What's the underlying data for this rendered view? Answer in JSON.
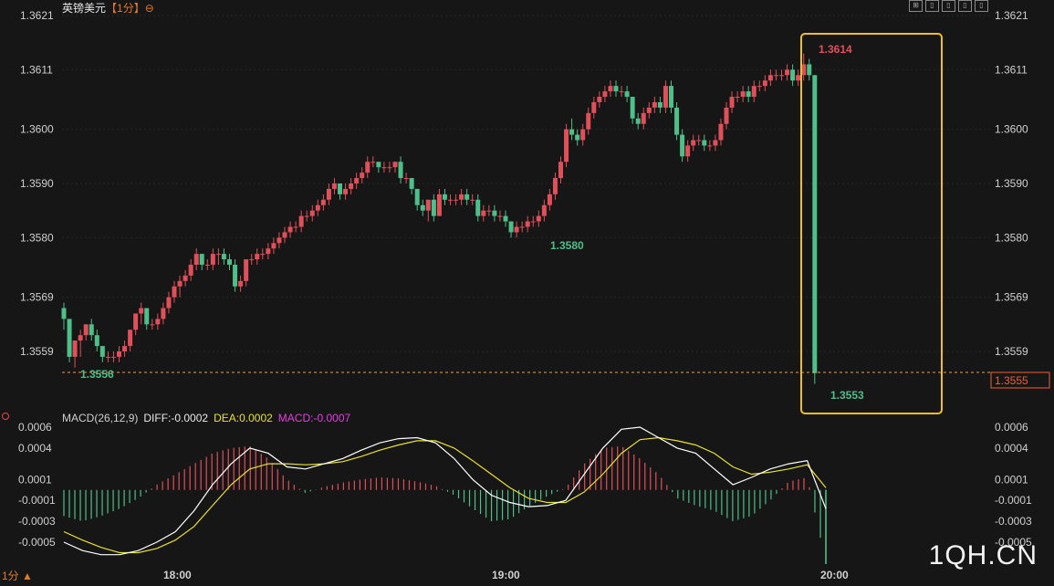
{
  "header": {
    "symbol": "英镑美元",
    "timeframe_tag": "【1分】",
    "minus_icon": "circle-minus-icon"
  },
  "toolbar_icons": [
    "grid-icon",
    "layout-icon",
    "layout-icon",
    "layout-icon",
    "layout-icon"
  ],
  "timeframe_button": "1分 ▲",
  "watermark": "1QH.CN",
  "macd_header": {
    "name": "MACD(26,12,9)",
    "diff": "DIFF:-0.0002",
    "dea": "DEA:0.0002",
    "macd": "MACD:-0.0007"
  },
  "colors": {
    "up": "#e0505a",
    "down": "#4fbf8a",
    "highlight": "#f0c020",
    "dea": "#e8e030",
    "diff": "#ffffff",
    "macd": "#e040e0",
    "price_line": "#f0a040"
  },
  "chart_data": [
    {
      "type": "candlestick",
      "y_ticks": [
        "1.3621",
        "1.3611",
        "1.3600",
        "1.3590",
        "1.3580",
        "1.3569",
        "1.3559"
      ],
      "ylim": [
        1.355,
        1.3623
      ],
      "x_ticks": [
        "18:00",
        "19:00",
        "20:00"
      ],
      "current_price": "1.3555",
      "annotations": {
        "high": "1.3614",
        "low_mid": "1.3580",
        "low_start": "1.3556",
        "low_end": "1.3553"
      },
      "ohlc": [
        [
          1.3567,
          1.3568,
          1.3563,
          1.3565
        ],
        [
          1.3565,
          1.3565,
          1.3557,
          1.3558
        ],
        [
          1.3558,
          1.3561,
          1.3556,
          1.3561
        ],
        [
          1.3561,
          1.3563,
          1.3558,
          1.3562
        ],
        [
          1.3562,
          1.3564,
          1.3561,
          1.3564
        ],
        [
          1.3564,
          1.3565,
          1.3561,
          1.3562
        ],
        [
          1.3562,
          1.3563,
          1.3559,
          1.356
        ],
        [
          1.356,
          1.356,
          1.3557,
          1.3558
        ],
        [
          1.3558,
          1.3559,
          1.3557,
          1.3558
        ],
        [
          1.3558,
          1.3559,
          1.3557,
          1.3558
        ],
        [
          1.3558,
          1.356,
          1.3557,
          1.3559
        ],
        [
          1.3559,
          1.3561,
          1.3558,
          1.356
        ],
        [
          1.356,
          1.3563,
          1.3559,
          1.3563
        ],
        [
          1.3563,
          1.3566,
          1.3562,
          1.3566
        ],
        [
          1.3566,
          1.3568,
          1.3564,
          1.3567
        ],
        [
          1.3567,
          1.3567,
          1.3563,
          1.3564
        ],
        [
          1.3564,
          1.3565,
          1.3563,
          1.3564
        ],
        [
          1.3564,
          1.3566,
          1.3563,
          1.3565
        ],
        [
          1.3565,
          1.3568,
          1.3564,
          1.3567
        ],
        [
          1.3567,
          1.357,
          1.3566,
          1.3569
        ],
        [
          1.3569,
          1.3572,
          1.3568,
          1.3571
        ],
        [
          1.3571,
          1.3573,
          1.3569,
          1.3572
        ],
        [
          1.3572,
          1.3574,
          1.3571,
          1.3573
        ],
        [
          1.3573,
          1.3576,
          1.3572,
          1.3575
        ],
        [
          1.3575,
          1.3578,
          1.3574,
          1.3577
        ],
        [
          1.3577,
          1.3577,
          1.3574,
          1.3575
        ],
        [
          1.3575,
          1.3576,
          1.3574,
          1.3575
        ],
        [
          1.3575,
          1.3578,
          1.3574,
          1.3577
        ],
        [
          1.3577,
          1.3578,
          1.3575,
          1.3577
        ],
        [
          1.3577,
          1.3578,
          1.3575,
          1.3576
        ],
        [
          1.3576,
          1.3577,
          1.3574,
          1.3575
        ],
        [
          1.3575,
          1.3576,
          1.357,
          1.3571
        ],
        [
          1.3571,
          1.3573,
          1.357,
          1.3572
        ],
        [
          1.3572,
          1.3576,
          1.3571,
          1.3576
        ],
        [
          1.3576,
          1.3577,
          1.3575,
          1.3576
        ],
        [
          1.3576,
          1.3578,
          1.3575,
          1.3577
        ],
        [
          1.3577,
          1.3578,
          1.3576,
          1.3577
        ],
        [
          1.3577,
          1.3579,
          1.3576,
          1.3578
        ],
        [
          1.3578,
          1.358,
          1.3577,
          1.3579
        ],
        [
          1.3579,
          1.3581,
          1.3578,
          1.358
        ],
        [
          1.358,
          1.3582,
          1.3579,
          1.3581
        ],
        [
          1.3581,
          1.3583,
          1.358,
          1.3582
        ],
        [
          1.3582,
          1.3583,
          1.3581,
          1.3582
        ],
        [
          1.3582,
          1.3585,
          1.3581,
          1.3584
        ],
        [
          1.3584,
          1.3585,
          1.3583,
          1.3584
        ],
        [
          1.3584,
          1.3586,
          1.3583,
          1.3585
        ],
        [
          1.3585,
          1.3587,
          1.3584,
          1.3586
        ],
        [
          1.3586,
          1.3588,
          1.3585,
          1.3587
        ],
        [
          1.3587,
          1.359,
          1.3586,
          1.3589
        ],
        [
          1.3589,
          1.3591,
          1.3588,
          1.359
        ],
        [
          1.359,
          1.359,
          1.3587,
          1.3588
        ],
        [
          1.3588,
          1.359,
          1.3587,
          1.3589
        ],
        [
          1.3589,
          1.3591,
          1.3588,
          1.359
        ],
        [
          1.359,
          1.3592,
          1.3589,
          1.3591
        ],
        [
          1.3591,
          1.3593,
          1.359,
          1.3592
        ],
        [
          1.3592,
          1.3595,
          1.3591,
          1.3594
        ],
        [
          1.3594,
          1.3595,
          1.3593,
          1.3594
        ],
        [
          1.3594,
          1.3594,
          1.3592,
          1.3593
        ],
        [
          1.3593,
          1.3594,
          1.3592,
          1.3593
        ],
        [
          1.3593,
          1.3594,
          1.3592,
          1.3593
        ],
        [
          1.3593,
          1.3594,
          1.3592,
          1.3594
        ],
        [
          1.3594,
          1.3595,
          1.359,
          1.3591
        ],
        [
          1.3591,
          1.3592,
          1.359,
          1.3591
        ],
        [
          1.3591,
          1.3591,
          1.3588,
          1.3589
        ],
        [
          1.3589,
          1.3589,
          1.3585,
          1.3586
        ],
        [
          1.3586,
          1.3587,
          1.3584,
          1.3585
        ],
        [
          1.3585,
          1.3587,
          1.3583,
          1.3587
        ],
        [
          1.3587,
          1.3588,
          1.3583,
          1.3584
        ],
        [
          1.3584,
          1.3589,
          1.3584,
          1.3588
        ],
        [
          1.3588,
          1.3589,
          1.3586,
          1.3587
        ],
        [
          1.3587,
          1.3588,
          1.3586,
          1.3587
        ],
        [
          1.3587,
          1.3588,
          1.3586,
          1.3587
        ],
        [
          1.3587,
          1.3589,
          1.3586,
          1.3588
        ],
        [
          1.3588,
          1.3589,
          1.3586,
          1.3587
        ],
        [
          1.3587,
          1.3588,
          1.3586,
          1.3587
        ],
        [
          1.3587,
          1.3588,
          1.3583,
          1.3584
        ],
        [
          1.3584,
          1.3586,
          1.3583,
          1.3585
        ],
        [
          1.3585,
          1.3586,
          1.3584,
          1.3585
        ],
        [
          1.3585,
          1.3586,
          1.3583,
          1.3584
        ],
        [
          1.3584,
          1.3585,
          1.3583,
          1.3584
        ],
        [
          1.3584,
          1.3585,
          1.3582,
          1.3583
        ],
        [
          1.3583,
          1.3583,
          1.358,
          1.3581
        ],
        [
          1.3581,
          1.3583,
          1.358,
          1.3582
        ],
        [
          1.3582,
          1.3583,
          1.3581,
          1.3582
        ],
        [
          1.3582,
          1.3584,
          1.3581,
          1.3583
        ],
        [
          1.3583,
          1.3584,
          1.3582,
          1.3583
        ],
        [
          1.3583,
          1.3585,
          1.3582,
          1.3584
        ],
        [
          1.3584,
          1.3587,
          1.3583,
          1.3586
        ],
        [
          1.3586,
          1.3589,
          1.3585,
          1.3588
        ],
        [
          1.3588,
          1.3592,
          1.3587,
          1.3591
        ],
        [
          1.3591,
          1.3595,
          1.359,
          1.3594
        ],
        [
          1.3594,
          1.3601,
          1.3593,
          1.36
        ],
        [
          1.36,
          1.3602,
          1.3598,
          1.3599
        ],
        [
          1.3599,
          1.36,
          1.3597,
          1.3598
        ],
        [
          1.3598,
          1.3601,
          1.3597,
          1.36
        ],
        [
          1.36,
          1.3604,
          1.3599,
          1.3603
        ],
        [
          1.3603,
          1.3606,
          1.3602,
          1.3605
        ],
        [
          1.3605,
          1.3607,
          1.3604,
          1.3606
        ],
        [
          1.3606,
          1.3608,
          1.3605,
          1.3607
        ],
        [
          1.3607,
          1.3609,
          1.3606,
          1.3608
        ],
        [
          1.3608,
          1.3609,
          1.3606,
          1.3607
        ],
        [
          1.3607,
          1.3608,
          1.3606,
          1.3607
        ],
        [
          1.3607,
          1.3608,
          1.3605,
          1.3606
        ],
        [
          1.3606,
          1.3606,
          1.3601,
          1.3602
        ],
        [
          1.3602,
          1.3603,
          1.36,
          1.3601
        ],
        [
          1.3601,
          1.3604,
          1.36,
          1.3603
        ],
        [
          1.3603,
          1.3605,
          1.3602,
          1.3604
        ],
        [
          1.3604,
          1.3606,
          1.3603,
          1.3605
        ],
        [
          1.3605,
          1.3606,
          1.3603,
          1.3604
        ],
        [
          1.3604,
          1.3609,
          1.3603,
          1.3608
        ],
        [
          1.3608,
          1.3609,
          1.3603,
          1.3604
        ],
        [
          1.3604,
          1.3605,
          1.3598,
          1.3599
        ],
        [
          1.3599,
          1.36,
          1.3594,
          1.3595
        ],
        [
          1.3595,
          1.3598,
          1.3594,
          1.3597
        ],
        [
          1.3597,
          1.3599,
          1.3596,
          1.3598
        ],
        [
          1.3598,
          1.3599,
          1.3597,
          1.3598
        ],
        [
          1.3598,
          1.3599,
          1.3596,
          1.3597
        ],
        [
          1.3597,
          1.3598,
          1.3596,
          1.3597
        ],
        [
          1.3597,
          1.3599,
          1.3596,
          1.3598
        ],
        [
          1.3598,
          1.3602,
          1.3597,
          1.3601
        ],
        [
          1.3601,
          1.3605,
          1.36,
          1.3604
        ],
        [
          1.3604,
          1.3607,
          1.3603,
          1.3606
        ],
        [
          1.3606,
          1.3607,
          1.3605,
          1.3606
        ],
        [
          1.3606,
          1.3608,
          1.3605,
          1.3607
        ],
        [
          1.3607,
          1.3608,
          1.3605,
          1.3606
        ],
        [
          1.3606,
          1.3609,
          1.3605,
          1.3608
        ],
        [
          1.3608,
          1.3609,
          1.3607,
          1.3608
        ],
        [
          1.3608,
          1.361,
          1.3607,
          1.3609
        ],
        [
          1.3609,
          1.3611,
          1.3608,
          1.361
        ],
        [
          1.361,
          1.3611,
          1.3609,
          1.361
        ],
        [
          1.361,
          1.3611,
          1.3609,
          1.361
        ],
        [
          1.361,
          1.3612,
          1.3609,
          1.3611
        ],
        [
          1.3611,
          1.3612,
          1.3608,
          1.3609
        ],
        [
          1.3609,
          1.3611,
          1.3608,
          1.361
        ],
        [
          1.361,
          1.3614,
          1.3609,
          1.3612
        ],
        [
          1.3612,
          1.3613,
          1.3609,
          1.361
        ],
        [
          1.361,
          1.361,
          1.3553,
          1.3555
        ]
      ]
    },
    {
      "type": "macd",
      "y_ticks": [
        "0.0006",
        "0.0004",
        "0.0001",
        "-0.0001",
        "-0.0003",
        "-0.0005"
      ],
      "ylim": [
        -0.00078,
        0.00068
      ],
      "series": [
        {
          "name": "DIFF",
          "values": [
            -0.0005,
            -0.00058,
            -0.00062,
            -0.00062,
            -0.00058,
            -0.0005,
            -0.0004,
            -0.0002,
            5e-05,
            0.00025,
            0.0004,
            0.00035,
            0.00022,
            0.0002,
            0.00025,
            0.0003,
            0.00038,
            0.00045,
            0.00049,
            0.0005,
            0.00045,
            0.0003,
            0.0001,
            -5e-05,
            -0.00012,
            -0.00016,
            -0.00015,
            -0.0001,
            0.00015,
            0.0004,
            0.00058,
            0.0006,
            0.0005,
            0.0004,
            0.00035,
            0.0002,
            5e-05,
            0.00012,
            0.0002,
            0.00025,
            0.00028,
            -0.00018
          ]
        },
        {
          "name": "DEA",
          "values": [
            -0.0004,
            -0.00048,
            -0.00055,
            -0.0006,
            -0.0006,
            -0.00056,
            -0.00048,
            -0.00035,
            -0.00015,
            5e-05,
            0.0002,
            0.00025,
            0.00025,
            0.00024,
            0.00025,
            0.00027,
            0.00032,
            0.00038,
            0.00043,
            0.00047,
            0.00047,
            0.0004,
            0.00028,
            0.00015,
            2e-05,
            -8e-05,
            -0.00012,
            -0.00012,
            -2e-05,
            0.00015,
            0.00035,
            0.00048,
            0.0005,
            0.00047,
            0.00043,
            0.00035,
            0.00022,
            0.00015,
            0.00017,
            0.0002,
            0.00024,
            2e-05
          ]
        },
        {
          "name": "MACD",
          "values": [
            -0.00025,
            -0.0003,
            -0.00025,
            -0.00018,
            -8e-05,
            5e-05,
            0.00015,
            0.00025,
            0.00035,
            0.0004,
            0.00042,
            0.0003,
            0.0001,
            -3e-05,
            3e-05,
            7e-05,
            0.0001,
            0.00012,
            0.00011,
            8e-05,
            4e-05,
            -5e-05,
            -0.00018,
            -0.0003,
            -0.00028,
            -0.00016,
            -6e-05,
            2e-05,
            0.00025,
            0.0004,
            0.00042,
            0.0003,
            0.00015,
            -8e-05,
            -0.00015,
            -0.0002,
            -0.0003,
            -0.00025,
            -0.0001,
            8e-05,
            0.00012,
            -0.0007
          ]
        }
      ]
    }
  ]
}
